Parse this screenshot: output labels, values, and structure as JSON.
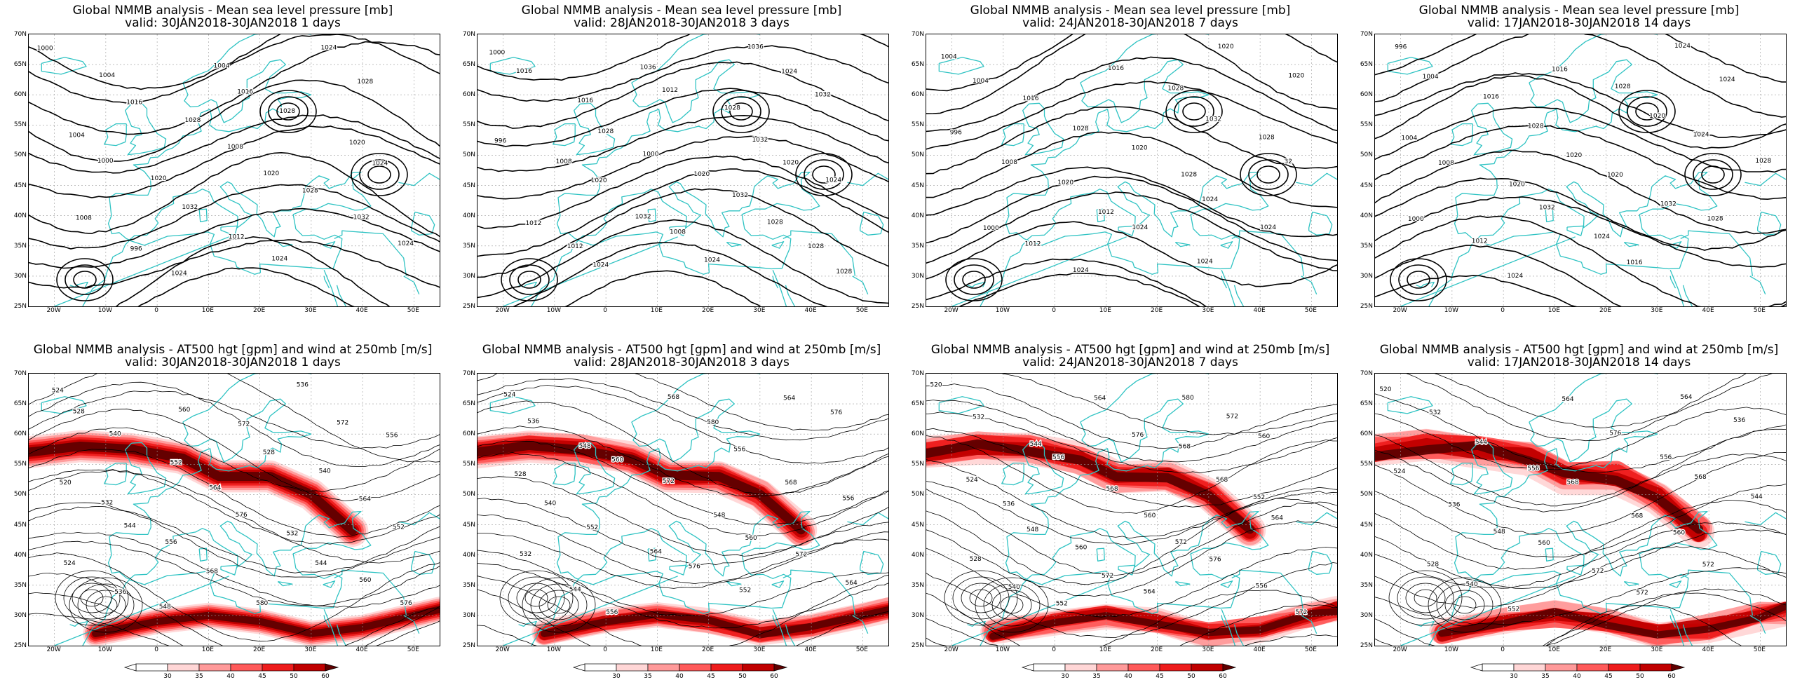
{
  "colors": {
    "coast": "#2fc3c3",
    "contour": "#000000",
    "wind": [
      "#ffffff",
      "#ffd6d6",
      "#ff9a9a",
      "#ff5a5a",
      "#ee1c1c",
      "#c00000",
      "#600000"
    ]
  },
  "axes": {
    "lat_labels": [
      "70N",
      "65N",
      "60N",
      "55N",
      "50N",
      "45N",
      "40N",
      "35N",
      "30N",
      "25N"
    ],
    "lon_labels": [
      "20W",
      "10W",
      "0",
      "10E",
      "20E",
      "30E",
      "40E",
      "50E"
    ]
  },
  "colorbar": {
    "labels": [
      "30",
      "35",
      "40",
      "45",
      "50",
      "60"
    ]
  },
  "panels": [
    {
      "row": "mslp",
      "title": "Global NMMB analysis - Mean sea level pressure [mb]",
      "valid": "valid: 30JAN2018-30JAN2018   1 days",
      "contour_labels": [
        "1000",
        "1004",
        "1008",
        "1004",
        "1000",
        "996",
        "1016",
        "1020",
        "1024",
        "1028",
        "1032",
        "1004",
        "1008",
        "1012",
        "1016",
        "1020",
        "1024",
        "1028",
        "1028",
        "1024",
        "1020",
        "1032",
        "1028",
        "1024",
        "1024"
      ]
    },
    {
      "row": "mslp",
      "title": "Global NMMB analysis - Mean sea level pressure [mb]",
      "valid": "valid: 28JAN2018-30JAN2018   3 days",
      "contour_labels": [
        "1000",
        "996",
        "1012",
        "1016",
        "1008",
        "1012",
        "1016",
        "1020",
        "1024",
        "1028",
        "1032",
        "1036",
        "1000",
        "1008",
        "1012",
        "1020",
        "1024",
        "1028",
        "1032",
        "1036",
        "1032",
        "1028",
        "1024",
        "1020",
        "1028",
        "1032",
        "1024",
        "1028"
      ]
    },
    {
      "row": "mslp",
      "title": "Global NMMB analysis - Mean sea level pressure [mb]",
      "valid": "valid: 24JAN2018-30JAN2018   7 days",
      "contour_labels": [
        "1004",
        "996",
        "1000",
        "1004",
        "1008",
        "1012",
        "1016",
        "1020",
        "1024",
        "1028",
        "1012",
        "1016",
        "1020",
        "1024",
        "1028",
        "1028",
        "1024",
        "1032",
        "1024",
        "1020",
        "1028",
        "1024",
        "1020",
        "32"
      ]
    },
    {
      "row": "mslp",
      "title": "Global NMMB analysis - Mean sea level pressure [mb]",
      "valid": "valid: 17JAN2018-30JAN2018   14 days",
      "contour_labels": [
        "996",
        "1004",
        "1000",
        "1004",
        "1008",
        "1012",
        "1016",
        "1020",
        "1024",
        "1028",
        "1032",
        "1016",
        "1020",
        "1024",
        "1028",
        "1020",
        "1016",
        "1020",
        "1032",
        "1024",
        "1024",
        "1028",
        "1024",
        "1028"
      ]
    },
    {
      "row": "z500",
      "title": "Global NMMB analysis - AT500 hgt [gpm] and wind at 250mb [m/s]",
      "valid": "valid: 30JAN2018-30JAN2018   1 days",
      "contour_labels": [
        "524",
        "520",
        "524",
        "528",
        "532",
        "536",
        "540",
        "544",
        "548",
        "552",
        "556",
        "560",
        "564",
        "568",
        "572",
        "576",
        "580",
        "528",
        "532",
        "536",
        "540",
        "544",
        "572",
        "564",
        "560",
        "556",
        "552",
        "576"
      ]
    },
    {
      "row": "z500",
      "title": "Global NMMB analysis - AT500 hgt [gpm] and wind at 250mb [m/s]",
      "valid": "valid: 28JAN2018-30JAN2018   3 days",
      "contour_labels": [
        "524",
        "528",
        "532",
        "536",
        "540",
        "544",
        "548",
        "552",
        "556",
        "560",
        "564",
        "568",
        "572",
        "576",
        "580",
        "548",
        "552",
        "556",
        "560",
        "564",
        "568",
        "572",
        "576",
        "556",
        "564"
      ]
    },
    {
      "row": "z500",
      "title": "Global NMMB analysis - AT500 hgt [gpm] and wind at 250mb [m/s]",
      "valid": "valid: 24JAN2018-30JAN2018   7 days",
      "contour_labels": [
        "520",
        "524",
        "528",
        "532",
        "536",
        "540",
        "544",
        "548",
        "552",
        "556",
        "560",
        "564",
        "568",
        "572",
        "576",
        "560",
        "564",
        "568",
        "572",
        "580",
        "568",
        "576",
        "572",
        "552",
        "556",
        "560",
        "564",
        "572"
      ]
    },
    {
      "row": "z500",
      "title": "Global NMMB analysis - AT500 hgt [gpm] and wind at 250mb [m/s]",
      "valid": "valid: 17JAN2018-30JAN2018   14 days",
      "contour_labels": [
        "520",
        "524",
        "528",
        "532",
        "536",
        "540",
        "544",
        "548",
        "552",
        "556",
        "560",
        "564",
        "568",
        "572",
        "576",
        "568",
        "572",
        "556",
        "560",
        "564",
        "568",
        "572",
        "536",
        "544"
      ]
    }
  ]
}
